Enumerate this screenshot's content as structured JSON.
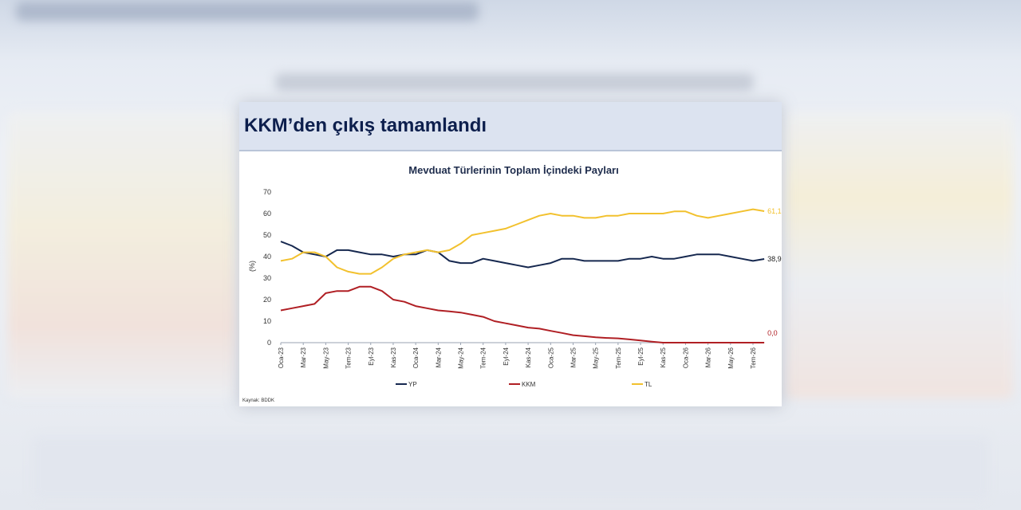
{
  "slide": {
    "title": "KKM’den çıkış tamamlandı",
    "source": "Kaynak: BDDK"
  },
  "chart_data": {
    "type": "line",
    "title": "Mevduat Türlerinin Toplam İçindeki Payları",
    "xlabel": "",
    "ylabel": "(%)",
    "ylim": [
      0,
      70
    ],
    "yticks": [
      0,
      10,
      20,
      30,
      40,
      50,
      60,
      70
    ],
    "categories": [
      "Oca-23",
      "Mar-23",
      "May-23",
      "Tem-23",
      "Eyl-23",
      "Kas-23",
      "Oca-24",
      "Mar-24",
      "May-24",
      "Tem-24",
      "Eyl-24",
      "Kas-24",
      "Oca-25",
      "Mar-25",
      "May-25",
      "Tem-25",
      "Eyl-25",
      "Kas-25",
      "Oca-26",
      "Mar-26",
      "May-26",
      "Tem-26"
    ],
    "x": [
      0,
      0.5,
      1,
      1.5,
      2,
      2.5,
      3,
      3.5,
      4,
      4.5,
      5,
      5.5,
      6,
      6.5,
      7,
      7.5,
      8,
      8.5,
      9,
      9.5,
      10,
      10.5,
      11,
      11.5,
      12,
      12.5,
      13,
      13.5,
      14,
      14.5,
      15,
      15.5,
      16,
      16.5,
      17,
      17.5,
      18,
      18.5,
      19,
      19.5,
      20,
      20.5,
      21,
      21.5
    ],
    "grid": false,
    "legend": "bottom",
    "series": [
      {
        "name": "YP",
        "color": "#16284f",
        "end_label": "38,9",
        "values": [
          47,
          45,
          42,
          41,
          40,
          43,
          43,
          42,
          41,
          41,
          40,
          41,
          41,
          43,
          42,
          38,
          37,
          37,
          39,
          38,
          37,
          36,
          35,
          36,
          37,
          39,
          39,
          38,
          38,
          38,
          38,
          39,
          39,
          40,
          39,
          39,
          40,
          41,
          41,
          41,
          40,
          39,
          38,
          38.9
        ]
      },
      {
        "name": "KKM",
        "color": "#b01f24",
        "end_label": "0,0",
        "values": [
          15,
          16,
          17,
          18,
          23,
          24,
          24,
          26,
          26,
          24,
          20,
          19,
          17,
          16,
          15,
          14.5,
          14,
          13,
          12,
          10,
          9,
          8,
          7,
          6.5,
          5.5,
          4.5,
          3.5,
          3,
          2.5,
          2.2,
          2,
          1.5,
          1,
          0.5,
          0,
          0,
          0,
          0,
          0,
          0,
          0,
          0,
          0,
          0
        ]
      },
      {
        "name": "TL",
        "color": "#f2c12e",
        "end_label": "61,1",
        "values": [
          38,
          39,
          42,
          42,
          40,
          35,
          33,
          32,
          32,
          35,
          39,
          41,
          42,
          43,
          42,
          43,
          46,
          50,
          51,
          52,
          53,
          55,
          57,
          59,
          60,
          59,
          59,
          58,
          58,
          59,
          59,
          60,
          60,
          60,
          60,
          61,
          61,
          59,
          58,
          59,
          60,
          61,
          62,
          61.1
        ]
      }
    ]
  }
}
